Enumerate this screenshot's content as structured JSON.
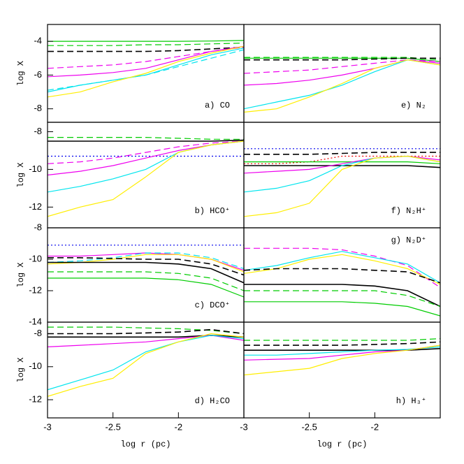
{
  "chart_data": [
    {
      "type": "line",
      "label": "a) CO",
      "label_position": "lower right",
      "ylabel": "log X",
      "x": [
        -3,
        -2.75,
        -2.5,
        -2.25,
        -2,
        -1.75,
        -1.5
      ],
      "xlim": [
        -3,
        -1.5
      ],
      "ylim": [
        -8.8,
        -3
      ],
      "yticks": [
        -4,
        -6,
        -8
      ],
      "series": [
        {
          "color": "#00cc00",
          "dash": "solid",
          "values": [
            -4.0,
            -4.0,
            -4.0,
            -4.0,
            -4.0,
            -3.98,
            -3.95
          ]
        },
        {
          "color": "#00cc00",
          "dash": "dashed",
          "values": [
            -4.25,
            -4.25,
            -4.25,
            -4.2,
            -4.2,
            -4.15,
            -4.1
          ]
        },
        {
          "color": "#000000",
          "dash": "dashed",
          "values": [
            -4.6,
            -4.6,
            -4.6,
            -4.6,
            -4.55,
            -4.45,
            -4.35
          ]
        },
        {
          "color": "#ee00ee",
          "dash": "dashed",
          "values": [
            -5.6,
            -5.5,
            -5.4,
            -5.2,
            -4.9,
            -4.6,
            -4.35
          ]
        },
        {
          "color": "#ee00ee",
          "dash": "solid",
          "values": [
            -6.1,
            -6.0,
            -5.85,
            -5.6,
            -5.1,
            -4.6,
            -4.3
          ]
        },
        {
          "color": "#00e5ee",
          "dash": "solid",
          "values": [
            -7.0,
            -6.6,
            -6.3,
            -6.0,
            -5.4,
            -4.8,
            -4.4
          ]
        },
        {
          "color": "#00e5ee",
          "dash": "dashed",
          "values": [
            -6.9,
            -6.6,
            -6.3,
            -6.0,
            -5.5,
            -5.0,
            -4.5
          ]
        },
        {
          "color": "#ffee00",
          "dash": "solid",
          "values": [
            -7.3,
            -7.0,
            -6.4,
            -5.9,
            -5.2,
            -4.7,
            -4.3
          ]
        }
      ]
    },
    {
      "type": "line",
      "label": "b) HCO⁺",
      "label_position": "lower right",
      "ylabel": "log X",
      "x": [
        -3,
        -2.75,
        -2.5,
        -2.25,
        -2,
        -1.75,
        -1.5
      ],
      "xlim": [
        -3,
        -1.5
      ],
      "ylim": [
        -13.1,
        -7.5
      ],
      "yticks": [
        -8,
        -10,
        -12
      ],
      "series": [
        {
          "color": "#00cc00",
          "dash": "dashed",
          "values": [
            -8.3,
            -8.3,
            -8.3,
            -8.3,
            -8.35,
            -8.4,
            -8.4
          ]
        },
        {
          "color": "#000000",
          "dash": "solid",
          "values": [
            -8.5,
            -8.5,
            -8.5,
            -8.5,
            -8.5,
            -8.5,
            -8.45
          ]
        },
        {
          "color": "#0000ee",
          "dash": "dotted",
          "values": [
            -9.3,
            -9.3,
            -9.3,
            -9.3,
            -9.3,
            -9.3,
            -9.3
          ]
        },
        {
          "color": "#ee00ee",
          "dash": "dashed",
          "values": [
            -9.7,
            -9.6,
            -9.4,
            -9.1,
            -8.8,
            -8.6,
            -8.5
          ]
        },
        {
          "color": "#ee00ee",
          "dash": "solid",
          "values": [
            -10.3,
            -10.1,
            -9.8,
            -9.4,
            -9.0,
            -8.7,
            -8.5
          ]
        },
        {
          "color": "#00e5ee",
          "dash": "solid",
          "values": [
            -11.2,
            -10.9,
            -10.5,
            -10.0,
            -9.1,
            -8.7,
            -8.5
          ]
        },
        {
          "color": "#ffee00",
          "dash": "solid",
          "values": [
            -12.5,
            -12.0,
            -11.6,
            -10.4,
            -9.1,
            -8.7,
            -8.5
          ]
        }
      ]
    },
    {
      "type": "line",
      "label": "c) DCO⁺",
      "label_position": "lower right",
      "ylabel": "log X",
      "x": [
        -3,
        -2.75,
        -2.5,
        -2.25,
        -2,
        -1.75,
        -1.5
      ],
      "xlim": [
        -3,
        -1.5
      ],
      "ylim": [
        -14,
        -8
      ],
      "yticks": [
        -8,
        -10,
        -12,
        -14
      ],
      "series": [
        {
          "color": "#0000ee",
          "dash": "dotted",
          "values": [
            -9.1,
            -9.1,
            -9.1,
            -9.1,
            -9.1,
            -9.1,
            -9.1
          ]
        },
        {
          "color": "#ee00ee",
          "dash": "solid",
          "values": [
            -9.8,
            -9.8,
            -9.7,
            -9.6,
            -9.7,
            -10.0,
            -10.7
          ]
        },
        {
          "color": "#00e5ee",
          "dash": "dashed",
          "values": [
            -10.2,
            -10.1,
            -9.9,
            -9.6,
            -9.6,
            -9.9,
            -10.6
          ]
        },
        {
          "color": "#ffee00",
          "dash": "solid",
          "values": [
            -10.3,
            -10.2,
            -10.0,
            -9.7,
            -9.7,
            -10.0,
            -10.8
          ]
        },
        {
          "color": "#000000",
          "dash": "dashed",
          "values": [
            -9.9,
            -9.9,
            -9.95,
            -10.0,
            -10.0,
            -10.3,
            -11.0
          ]
        },
        {
          "color": "#000000",
          "dash": "solid",
          "values": [
            -10.2,
            -10.2,
            -10.2,
            -10.2,
            -10.3,
            -10.6,
            -11.5
          ]
        },
        {
          "color": "#00cc00",
          "dash": "dashed",
          "values": [
            -10.8,
            -10.8,
            -10.8,
            -10.8,
            -10.9,
            -11.2,
            -12.0
          ]
        },
        {
          "color": "#00cc00",
          "dash": "solid",
          "values": [
            -11.2,
            -11.2,
            -11.2,
            -11.2,
            -11.3,
            -11.6,
            -12.4
          ]
        }
      ]
    },
    {
      "type": "line",
      "label": "d) H₂CO",
      "label_position": "lower right",
      "ylabel": "log X",
      "xlabel": "log r (pc)",
      "x": [
        -3,
        -2.75,
        -2.5,
        -2.25,
        -2,
        -1.75,
        -1.5
      ],
      "xlim": [
        -3,
        -1.5
      ],
      "ylim": [
        -13.1,
        -7.3
      ],
      "yticks": [
        -8,
        -10,
        -12
      ],
      "xticks": [
        -3,
        -2.5,
        -2
      ],
      "series": [
        {
          "color": "#00cc00",
          "dash": "dashed",
          "values": [
            -7.6,
            -7.6,
            -7.6,
            -7.65,
            -7.7,
            -7.8,
            -8.0
          ]
        },
        {
          "color": "#000000",
          "dash": "dashed",
          "values": [
            -8.0,
            -8.0,
            -8.0,
            -7.95,
            -7.9,
            -7.75,
            -8.0
          ]
        },
        {
          "color": "#000000",
          "dash": "solid",
          "values": [
            -8.2,
            -8.2,
            -8.2,
            -8.2,
            -8.2,
            -8.1,
            -8.2
          ]
        },
        {
          "color": "#ee00ee",
          "dash": "solid",
          "values": [
            -8.8,
            -8.7,
            -8.6,
            -8.5,
            -8.3,
            -8.1,
            -8.4
          ]
        },
        {
          "color": "#00e5ee",
          "dash": "solid",
          "values": [
            -11.4,
            -10.8,
            -10.2,
            -9.1,
            -8.5,
            -8.1,
            -8.3
          ]
        },
        {
          "color": "#ffee00",
          "dash": "solid",
          "values": [
            -11.8,
            -11.2,
            -10.7,
            -9.2,
            -8.5,
            -8.0,
            -8.2
          ]
        }
      ]
    },
    {
      "type": "line",
      "label": "e) N₂",
      "label_position": "lower right",
      "x": [
        -3,
        -2.75,
        -2.5,
        -2.25,
        -2,
        -1.75,
        -1.5
      ],
      "xlim": [
        -3,
        -1.5
      ],
      "ylim": [
        -8.8,
        -3
      ],
      "series": [
        {
          "color": "#00cc00",
          "dash": "dashed",
          "values": [
            -4.95,
            -4.95,
            -4.95,
            -4.95,
            -4.95,
            -4.95,
            -5.1
          ]
        },
        {
          "color": "#00cc00",
          "dash": "solid",
          "values": [
            -5.0,
            -5.0,
            -5.0,
            -5.0,
            -5.0,
            -5.0,
            -5.2
          ]
        },
        {
          "color": "#000000",
          "dash": "dashed",
          "values": [
            -5.1,
            -5.1,
            -5.1,
            -5.1,
            -5.05,
            -5.0,
            -5.0
          ]
        },
        {
          "color": "#ee00ee",
          "dash": "dashed",
          "values": [
            -5.9,
            -5.8,
            -5.7,
            -5.5,
            -5.3,
            -5.1,
            -5.2
          ]
        },
        {
          "color": "#ee00ee",
          "dash": "solid",
          "values": [
            -6.6,
            -6.5,
            -6.3,
            -6.0,
            -5.6,
            -5.1,
            -5.3
          ]
        },
        {
          "color": "#00e5ee",
          "dash": "solid",
          "values": [
            -8.0,
            -7.6,
            -7.2,
            -6.6,
            -5.8,
            -5.1,
            -5.4
          ]
        },
        {
          "color": "#ffee00",
          "dash": "solid",
          "values": [
            -8.2,
            -8.0,
            -7.3,
            -6.5,
            -5.6,
            -5.1,
            -5.4
          ]
        }
      ]
    },
    {
      "type": "line",
      "label": "f) N₂H⁺",
      "label_position": "lower right",
      "x": [
        -3,
        -2.75,
        -2.5,
        -2.25,
        -2,
        -1.75,
        -1.5
      ],
      "xlim": [
        -3,
        -1.5
      ],
      "ylim": [
        -13.1,
        -7.5
      ],
      "series": [
        {
          "color": "#0000ee",
          "dash": "dotted",
          "values": [
            -8.9,
            -8.9,
            -8.9,
            -8.9,
            -8.9,
            -8.9,
            -8.9
          ]
        },
        {
          "color": "#000000",
          "dash": "dashed",
          "values": [
            -9.2,
            -9.2,
            -9.2,
            -9.15,
            -9.1,
            -9.1,
            -9.1
          ]
        },
        {
          "color": "#ee0000",
          "dash": "dotted",
          "values": [
            -9.7,
            -9.7,
            -9.6,
            -9.3,
            -9.3,
            -9.3,
            -9.3
          ]
        },
        {
          "color": "#00cc00",
          "dash": "solid",
          "values": [
            -9.6,
            -9.6,
            -9.6,
            -9.6,
            -9.6,
            -9.6,
            -9.7
          ]
        },
        {
          "color": "#000000",
          "dash": "solid",
          "values": [
            -9.8,
            -9.8,
            -9.8,
            -9.8,
            -9.8,
            -9.8,
            -9.9
          ]
        },
        {
          "color": "#ee00ee",
          "dash": "solid",
          "values": [
            -10.2,
            -10.1,
            -10.0,
            -9.7,
            -9.4,
            -9.3,
            -9.5
          ]
        },
        {
          "color": "#00e5ee",
          "dash": "solid",
          "values": [
            -11.2,
            -11.0,
            -10.6,
            -9.8,
            -9.4,
            -9.3,
            -9.6
          ]
        },
        {
          "color": "#ffee00",
          "dash": "solid",
          "values": [
            -12.5,
            -12.3,
            -11.8,
            -10.0,
            -9.4,
            -9.3,
            -9.6
          ]
        }
      ]
    },
    {
      "type": "line",
      "label": "g) N₂D⁺",
      "label_position": "upper right",
      "x": [
        -3,
        -2.75,
        -2.5,
        -2.25,
        -2,
        -1.75,
        -1.5
      ],
      "xlim": [
        -3,
        -1.5
      ],
      "ylim": [
        -14,
        -8
      ],
      "series": [
        {
          "color": "#ee00ee",
          "dash": "dashed",
          "values": [
            -9.3,
            -9.3,
            -9.3,
            -9.4,
            -9.8,
            -10.4,
            -11.8
          ]
        },
        {
          "color": "#00e5ee",
          "dash": "solid",
          "values": [
            -10.7,
            -10.4,
            -9.9,
            -9.5,
            -9.9,
            -10.3,
            -11.5
          ]
        },
        {
          "color": "#ffee00",
          "dash": "solid",
          "values": [
            -10.9,
            -10.6,
            -10.0,
            -9.7,
            -10.1,
            -10.6,
            -11.6
          ]
        },
        {
          "color": "#000000",
          "dash": "dashed",
          "values": [
            -10.7,
            -10.6,
            -10.6,
            -10.6,
            -10.7,
            -10.8,
            -11.5
          ]
        },
        {
          "color": "#000000",
          "dash": "solid",
          "values": [
            -11.6,
            -11.6,
            -11.6,
            -11.6,
            -11.7,
            -12.0,
            -13.0
          ]
        },
        {
          "color": "#00cc00",
          "dash": "dashed",
          "values": [
            -12.0,
            -12.0,
            -12.0,
            -12.0,
            -12.0,
            -12.3,
            -13.0
          ]
        },
        {
          "color": "#00cc00",
          "dash": "solid",
          "values": [
            -12.7,
            -12.7,
            -12.7,
            -12.7,
            -12.8,
            -13.0,
            -13.6
          ]
        }
      ]
    },
    {
      "type": "line",
      "label": "h) H₃⁺",
      "label_position": "lower right",
      "xlabel": "log r (pc)",
      "x": [
        -3,
        -2.75,
        -2.5,
        -2.25,
        -2,
        -1.75,
        -1.5
      ],
      "xlim": [
        -3,
        -1.5
      ],
      "ylim": [
        -13.1,
        -7.3
      ],
      "xticks": [
        -3,
        -2.5,
        -2
      ],
      "series": [
        {
          "color": "#00cc00",
          "dash": "dashed",
          "values": [
            -8.4,
            -8.4,
            -8.4,
            -8.4,
            -8.4,
            -8.4,
            -8.3
          ]
        },
        {
          "color": "#000000",
          "dash": "dashed",
          "values": [
            -8.7,
            -8.7,
            -8.7,
            -8.7,
            -8.65,
            -8.6,
            -8.5
          ]
        },
        {
          "color": "#000000",
          "dash": "solid",
          "values": [
            -9.0,
            -9.0,
            -9.0,
            -9.0,
            -9.0,
            -9.0,
            -8.9
          ]
        },
        {
          "color": "#00e5ee",
          "dash": "solid",
          "values": [
            -9.3,
            -9.3,
            -9.2,
            -9.1,
            -9.0,
            -8.95,
            -8.8
          ]
        },
        {
          "color": "#ee00ee",
          "dash": "solid",
          "values": [
            -9.6,
            -9.55,
            -9.5,
            -9.3,
            -9.1,
            -9.0,
            -8.7
          ]
        },
        {
          "color": "#ffee00",
          "dash": "solid",
          "values": [
            -10.5,
            -10.3,
            -10.1,
            -9.5,
            -9.2,
            -9.0,
            -8.7
          ]
        }
      ]
    }
  ]
}
